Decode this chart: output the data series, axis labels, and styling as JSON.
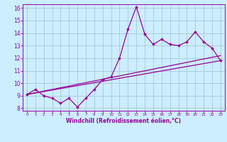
{
  "xlabel": "Windchill (Refroidissement éolien,°C)",
  "bg_color": "#cceeff",
  "grid_color": "#aaccdd",
  "line_color": "#990099",
  "spine_color": "#9900aa",
  "xlim": [
    -0.5,
    23.5
  ],
  "ylim": [
    7.8,
    16.3
  ],
  "xticks": [
    0,
    1,
    2,
    3,
    4,
    5,
    6,
    7,
    8,
    9,
    10,
    11,
    12,
    13,
    14,
    15,
    16,
    17,
    18,
    19,
    20,
    21,
    22,
    23
  ],
  "yticks": [
    8,
    9,
    10,
    11,
    12,
    13,
    14,
    15,
    16
  ],
  "series1_x": [
    0,
    1,
    2,
    3,
    4,
    5,
    6,
    7,
    8,
    9,
    10,
    11,
    12,
    13,
    14,
    15,
    16,
    17,
    18,
    19,
    20,
    21,
    22,
    23
  ],
  "series1_y": [
    9.1,
    9.5,
    9.0,
    8.8,
    8.4,
    8.8,
    8.1,
    8.8,
    9.5,
    10.3,
    10.5,
    12.0,
    14.3,
    16.1,
    13.9,
    13.1,
    13.5,
    13.1,
    13.0,
    13.3,
    14.1,
    13.3,
    12.8,
    11.8
  ],
  "series2_x": [
    0,
    23
  ],
  "series2_y": [
    9.1,
    11.8
  ],
  "series3_x": [
    0,
    23
  ],
  "series3_y": [
    9.1,
    12.2
  ]
}
